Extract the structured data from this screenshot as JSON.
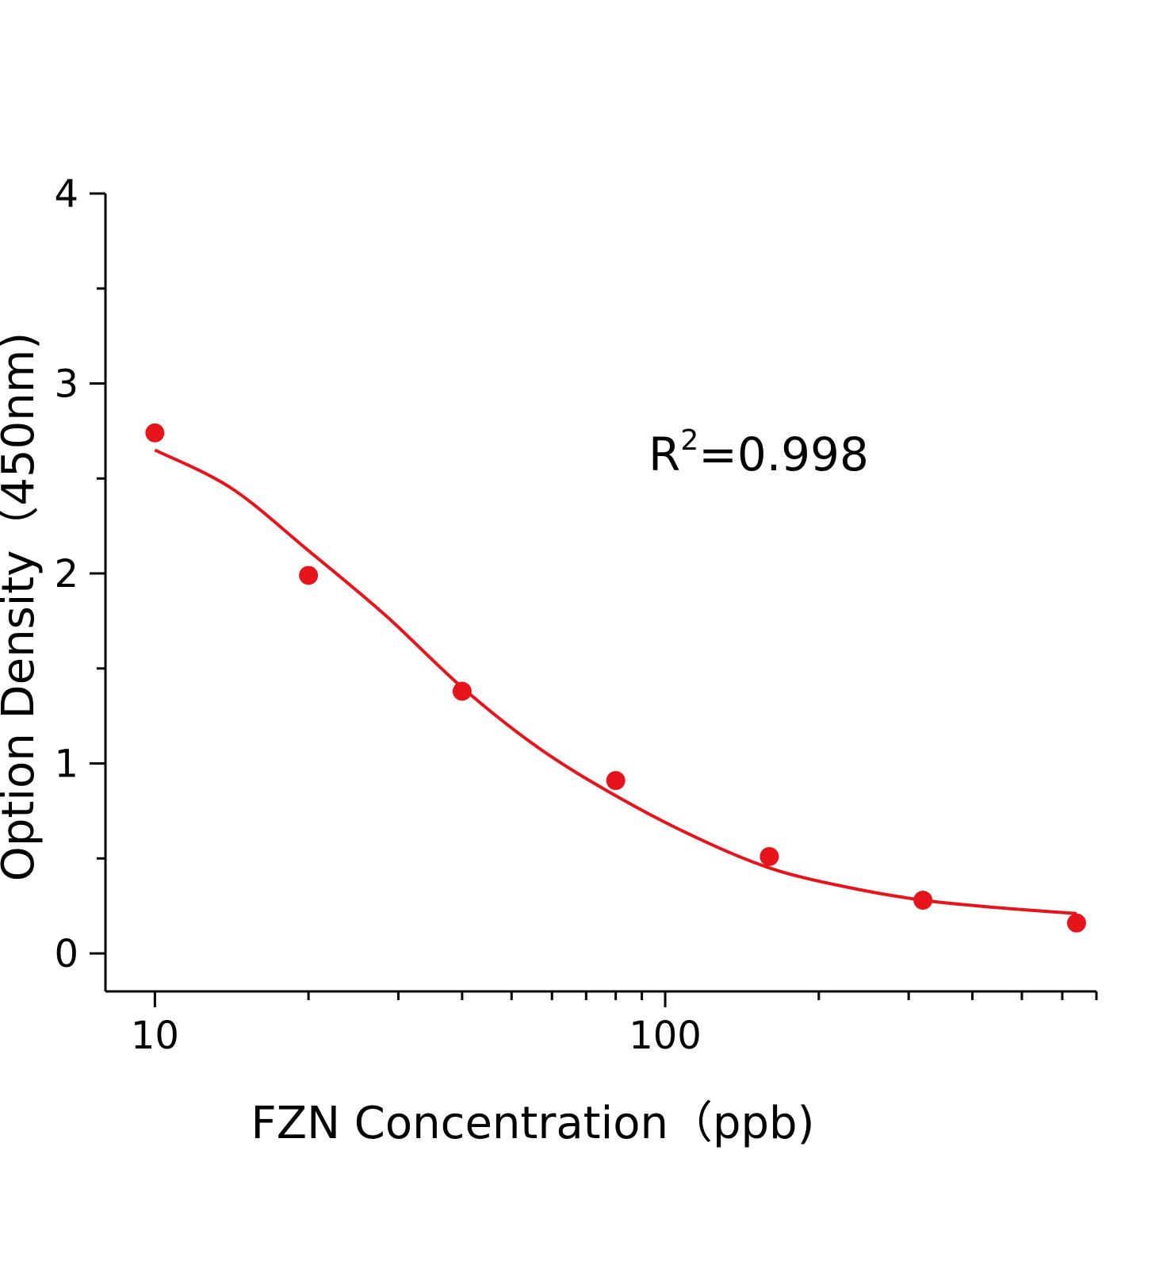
{
  "chart_data": {
    "type": "scatter",
    "x_label": "FZN Concentration（ppb)",
    "y_label": "Option Density（450nm)",
    "annotation": {
      "base": "R",
      "sup": "2",
      "rest": "=0.998"
    },
    "x_scale": "log",
    "xlim": [
      8,
      700
    ],
    "xticks": [
      10,
      100
    ],
    "xminorticks": [
      20,
      30,
      40,
      50,
      60,
      70,
      80,
      90,
      200,
      300,
      400,
      500,
      600,
      700
    ],
    "ylim": [
      -0.2,
      4
    ],
    "yticks": [
      0,
      1,
      2,
      3,
      4
    ],
    "yminorticks": [
      0.5,
      1.5,
      2.5,
      3.5
    ],
    "series": [
      {
        "color": "#e8141c",
        "x": [
          10,
          20,
          40,
          80,
          160,
          320,
          640
        ],
        "values": [
          2.74,
          1.99,
          1.38,
          0.91,
          0.51,
          0.28,
          0.16
        ]
      }
    ],
    "fit": {
      "color": "#e8141c",
      "x": [
        10,
        14.1,
        20,
        28.3,
        40,
        56.6,
        80,
        113,
        160,
        226,
        320,
        453,
        640
      ],
      "values": [
        2.65,
        2.45,
        2.12,
        1.78,
        1.4,
        1.08,
        0.83,
        0.62,
        0.45,
        0.35,
        0.28,
        0.24,
        0.21
      ]
    }
  }
}
